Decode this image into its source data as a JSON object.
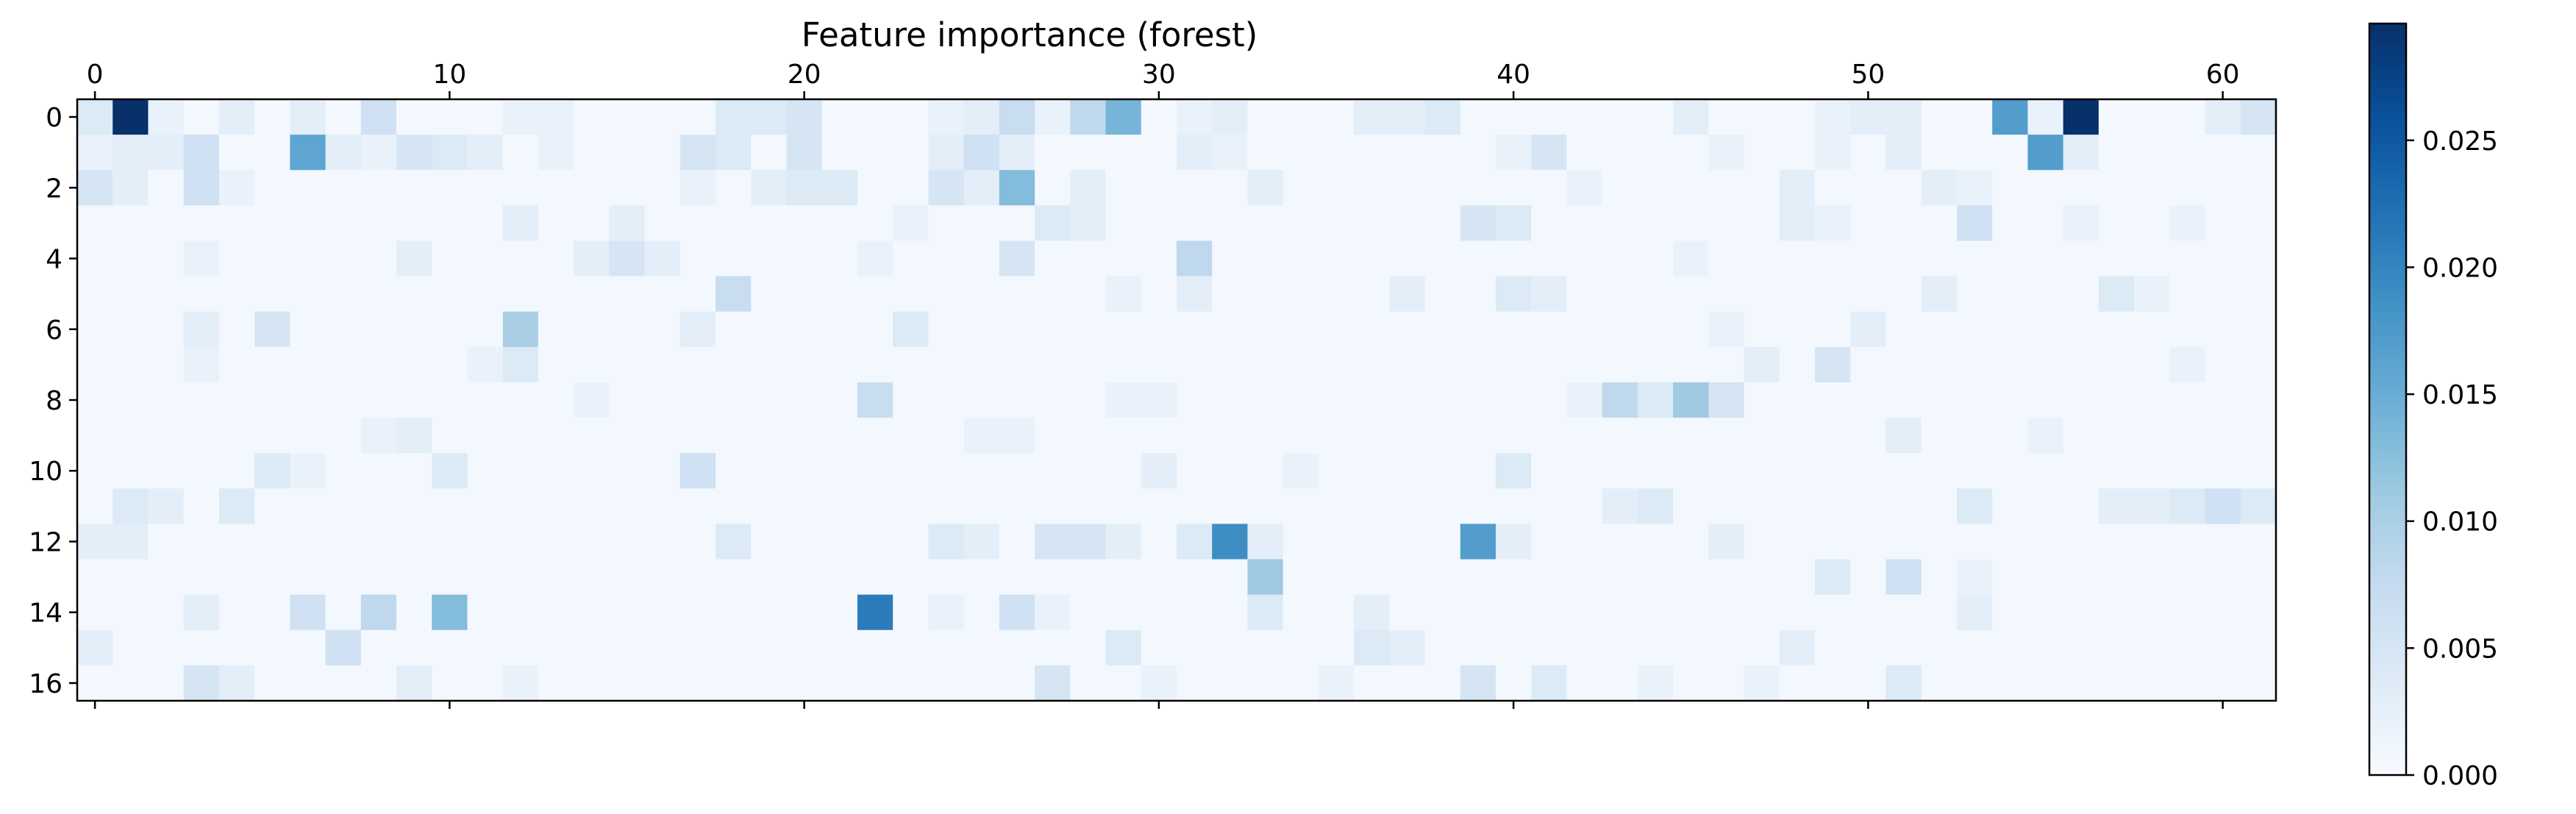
{
  "chart_data": {
    "type": "heatmap",
    "title": "Feature importance (forest)",
    "xlabel": "",
    "ylabel": "",
    "n_cols": 62,
    "n_rows": 17,
    "x_ticks": [
      0,
      10,
      20,
      30,
      40,
      50,
      60
    ],
    "y_ticks": [
      0,
      2,
      4,
      6,
      8,
      10,
      12,
      14,
      16
    ],
    "x_tick_position": "top",
    "colormap": "Blues",
    "colormap_stops": [
      "#f7fbff",
      "#deebf7",
      "#c6dbef",
      "#9ecae1",
      "#6baed6",
      "#4292c6",
      "#2171b5",
      "#08519c",
      "#08306b"
    ],
    "vmin": 0.0,
    "vmax": 0.0296,
    "colorbar": {
      "ticks": [
        0.0,
        0.005,
        0.01,
        0.015,
        0.02,
        0.025
      ],
      "tick_labels": [
        "0.000",
        "0.005",
        "0.010",
        "0.015",
        "0.020",
        "0.025"
      ],
      "placement": "right"
    },
    "base_value": 0.0006,
    "cells": [
      [
        0,
        0,
        0.004
      ],
      [
        0,
        1,
        0.0296
      ],
      [
        0,
        2,
        0.002
      ],
      [
        0,
        4,
        0.003
      ],
      [
        0,
        6,
        0.003
      ],
      [
        0,
        8,
        0.006
      ],
      [
        0,
        12,
        0.002
      ],
      [
        0,
        13,
        0.002
      ],
      [
        0,
        18,
        0.004
      ],
      [
        0,
        19,
        0.004
      ],
      [
        0,
        20,
        0.005
      ],
      [
        0,
        24,
        0.002
      ],
      [
        0,
        25,
        0.003
      ],
      [
        0,
        26,
        0.007
      ],
      [
        0,
        27,
        0.002
      ],
      [
        0,
        28,
        0.008
      ],
      [
        0,
        29,
        0.014
      ],
      [
        0,
        31,
        0.002
      ],
      [
        0,
        32,
        0.003
      ],
      [
        0,
        36,
        0.003
      ],
      [
        0,
        37,
        0.003
      ],
      [
        0,
        38,
        0.004
      ],
      [
        0,
        45,
        0.003
      ],
      [
        0,
        49,
        0.002
      ],
      [
        0,
        50,
        0.003
      ],
      [
        0,
        51,
        0.003
      ],
      [
        0,
        54,
        0.017
      ],
      [
        0,
        55,
        0.002
      ],
      [
        0,
        56,
        0.0296
      ],
      [
        0,
        60,
        0.003
      ],
      [
        0,
        61,
        0.005
      ],
      [
        1,
        0,
        0.002
      ],
      [
        1,
        1,
        0.003
      ],
      [
        1,
        2,
        0.003
      ],
      [
        1,
        3,
        0.006
      ],
      [
        1,
        6,
        0.016
      ],
      [
        1,
        7,
        0.003
      ],
      [
        1,
        8,
        0.002
      ],
      [
        1,
        9,
        0.005
      ],
      [
        1,
        10,
        0.004
      ],
      [
        1,
        11,
        0.003
      ],
      [
        1,
        13,
        0.002
      ],
      [
        1,
        17,
        0.005
      ],
      [
        1,
        18,
        0.004
      ],
      [
        1,
        20,
        0.005
      ],
      [
        1,
        24,
        0.003
      ],
      [
        1,
        25,
        0.006
      ],
      [
        1,
        26,
        0.003
      ],
      [
        1,
        31,
        0.003
      ],
      [
        1,
        32,
        0.002
      ],
      [
        1,
        40,
        0.002
      ],
      [
        1,
        41,
        0.005
      ],
      [
        1,
        46,
        0.002
      ],
      [
        1,
        49,
        0.002
      ],
      [
        1,
        51,
        0.003
      ],
      [
        1,
        55,
        0.017
      ],
      [
        1,
        56,
        0.003
      ],
      [
        2,
        0,
        0.005
      ],
      [
        2,
        1,
        0.003
      ],
      [
        2,
        3,
        0.006
      ],
      [
        2,
        4,
        0.002
      ],
      [
        2,
        17,
        0.002
      ],
      [
        2,
        19,
        0.003
      ],
      [
        2,
        20,
        0.004
      ],
      [
        2,
        21,
        0.004
      ],
      [
        2,
        24,
        0.005
      ],
      [
        2,
        25,
        0.003
      ],
      [
        2,
        26,
        0.013
      ],
      [
        2,
        28,
        0.003
      ],
      [
        2,
        33,
        0.003
      ],
      [
        2,
        42,
        0.002
      ],
      [
        2,
        48,
        0.003
      ],
      [
        2,
        52,
        0.003
      ],
      [
        2,
        53,
        0.002
      ],
      [
        3,
        12,
        0.003
      ],
      [
        3,
        15,
        0.003
      ],
      [
        3,
        23,
        0.002
      ],
      [
        3,
        27,
        0.004
      ],
      [
        3,
        28,
        0.003
      ],
      [
        3,
        39,
        0.005
      ],
      [
        3,
        40,
        0.004
      ],
      [
        3,
        48,
        0.003
      ],
      [
        3,
        49,
        0.002
      ],
      [
        3,
        53,
        0.006
      ],
      [
        3,
        56,
        0.002
      ],
      [
        3,
        59,
        0.002
      ],
      [
        4,
        3,
        0.002
      ],
      [
        4,
        9,
        0.003
      ],
      [
        4,
        14,
        0.003
      ],
      [
        4,
        15,
        0.005
      ],
      [
        4,
        16,
        0.003
      ],
      [
        4,
        22,
        0.002
      ],
      [
        4,
        26,
        0.005
      ],
      [
        4,
        31,
        0.008
      ],
      [
        4,
        45,
        0.002
      ],
      [
        5,
        18,
        0.007
      ],
      [
        5,
        31,
        0.003
      ],
      [
        5,
        29,
        0.002
      ],
      [
        5,
        37,
        0.003
      ],
      [
        5,
        40,
        0.004
      ],
      [
        5,
        41,
        0.003
      ],
      [
        5,
        52,
        0.003
      ],
      [
        5,
        57,
        0.004
      ],
      [
        5,
        58,
        0.002
      ],
      [
        6,
        3,
        0.003
      ],
      [
        6,
        5,
        0.005
      ],
      [
        6,
        12,
        0.01
      ],
      [
        6,
        17,
        0.003
      ],
      [
        6,
        23,
        0.004
      ],
      [
        6,
        46,
        0.002
      ],
      [
        6,
        50,
        0.003
      ],
      [
        7,
        3,
        0.002
      ],
      [
        7,
        11,
        0.002
      ],
      [
        7,
        12,
        0.004
      ],
      [
        7,
        47,
        0.003
      ],
      [
        7,
        49,
        0.005
      ],
      [
        7,
        59,
        0.002
      ],
      [
        8,
        14,
        0.002
      ],
      [
        8,
        22,
        0.007
      ],
      [
        8,
        29,
        0.002
      ],
      [
        8,
        30,
        0.002
      ],
      [
        8,
        42,
        0.002
      ],
      [
        8,
        43,
        0.008
      ],
      [
        8,
        44,
        0.004
      ],
      [
        8,
        45,
        0.011
      ],
      [
        8,
        46,
        0.005
      ],
      [
        9,
        8,
        0.002
      ],
      [
        9,
        9,
        0.003
      ],
      [
        9,
        25,
        0.002
      ],
      [
        9,
        26,
        0.002
      ],
      [
        9,
        51,
        0.003
      ],
      [
        9,
        55,
        0.002
      ],
      [
        10,
        5,
        0.004
      ],
      [
        10,
        6,
        0.002
      ],
      [
        10,
        10,
        0.004
      ],
      [
        10,
        17,
        0.006
      ],
      [
        10,
        30,
        0.003
      ],
      [
        10,
        34,
        0.002
      ],
      [
        10,
        40,
        0.004
      ],
      [
        11,
        1,
        0.004
      ],
      [
        11,
        2,
        0.003
      ],
      [
        11,
        4,
        0.004
      ],
      [
        11,
        43,
        0.003
      ],
      [
        11,
        44,
        0.004
      ],
      [
        11,
        53,
        0.004
      ],
      [
        11,
        57,
        0.003
      ],
      [
        11,
        58,
        0.003
      ],
      [
        11,
        59,
        0.004
      ],
      [
        11,
        60,
        0.006
      ],
      [
        11,
        61,
        0.004
      ],
      [
        12,
        0,
        0.003
      ],
      [
        12,
        1,
        0.003
      ],
      [
        12,
        18,
        0.004
      ],
      [
        12,
        24,
        0.004
      ],
      [
        12,
        25,
        0.003
      ],
      [
        12,
        27,
        0.005
      ],
      [
        12,
        28,
        0.005
      ],
      [
        12,
        29,
        0.003
      ],
      [
        12,
        31,
        0.004
      ],
      [
        12,
        32,
        0.019
      ],
      [
        12,
        33,
        0.003
      ],
      [
        12,
        39,
        0.017
      ],
      [
        12,
        40,
        0.003
      ],
      [
        12,
        46,
        0.003
      ],
      [
        13,
        33,
        0.011
      ],
      [
        13,
        49,
        0.004
      ],
      [
        13,
        51,
        0.006
      ],
      [
        13,
        53,
        0.002
      ],
      [
        14,
        3,
        0.003
      ],
      [
        14,
        6,
        0.006
      ],
      [
        14,
        8,
        0.008
      ],
      [
        14,
        10,
        0.013
      ],
      [
        14,
        22,
        0.021
      ],
      [
        14,
        24,
        0.002
      ],
      [
        14,
        26,
        0.006
      ],
      [
        14,
        27,
        0.002
      ],
      [
        14,
        33,
        0.004
      ],
      [
        14,
        36,
        0.003
      ],
      [
        14,
        53,
        0.003
      ],
      [
        15,
        0,
        0.003
      ],
      [
        15,
        7,
        0.006
      ],
      [
        15,
        29,
        0.004
      ],
      [
        15,
        36,
        0.004
      ],
      [
        15,
        37,
        0.003
      ],
      [
        15,
        48,
        0.003
      ],
      [
        16,
        3,
        0.005
      ],
      [
        16,
        4,
        0.003
      ],
      [
        16,
        9,
        0.003
      ],
      [
        16,
        12,
        0.002
      ],
      [
        16,
        27,
        0.005
      ],
      [
        16,
        30,
        0.002
      ],
      [
        16,
        35,
        0.002
      ],
      [
        16,
        39,
        0.005
      ],
      [
        16,
        41,
        0.004
      ],
      [
        16,
        44,
        0.002
      ],
      [
        16,
        47,
        0.002
      ],
      [
        16,
        51,
        0.004
      ]
    ]
  }
}
